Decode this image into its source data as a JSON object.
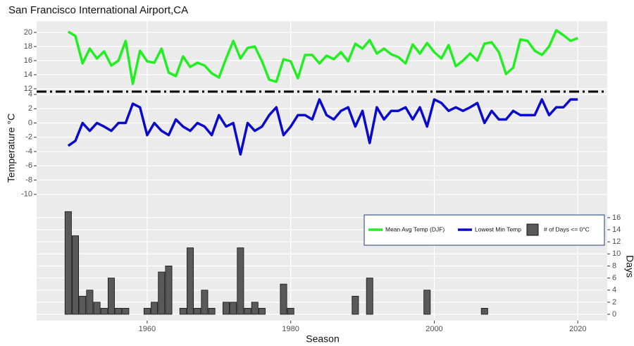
{
  "chart_data": [
    {
      "type": "line",
      "title": "San Francisco International Airport,CA",
      "x_label": "Season",
      "y_label": "Temperature °C",
      "x": [
        1949,
        1950,
        1951,
        1952,
        1953,
        1954,
        1955,
        1956,
        1957,
        1958,
        1959,
        1960,
        1961,
        1962,
        1963,
        1964,
        1965,
        1966,
        1967,
        1968,
        1969,
        1970,
        1971,
        1972,
        1973,
        1974,
        1975,
        1976,
        1977,
        1978,
        1979,
        1980,
        1981,
        1982,
        1983,
        1984,
        1985,
        1986,
        1987,
        1988,
        1989,
        1990,
        1991,
        1992,
        1993,
        1994,
        1995,
        1996,
        1997,
        1998,
        1999,
        2000,
        2001,
        2002,
        2003,
        2004,
        2005,
        2006,
        2007,
        2008,
        2009,
        2010,
        2011,
        2012,
        2013,
        2014,
        2015,
        2016,
        2017,
        2018,
        2019,
        2020
      ],
      "series": [
        {
          "name": "Mean Avg Temp (DJF)",
          "color": "#22ee22",
          "axis": "y",
          "values": [
            20.1,
            19.5,
            15.6,
            17.7,
            16.3,
            17.3,
            15.3,
            16.0,
            18.8,
            12.7,
            17.4,
            15.9,
            15.7,
            17.7,
            14.3,
            13.8,
            16.6,
            15.1,
            15.7,
            15.3,
            14.2,
            13.6,
            16.3,
            18.8,
            16.3,
            17.8,
            18.0,
            15.9,
            13.3,
            13.0,
            16.2,
            15.9,
            13.5,
            16.8,
            16.8,
            15.6,
            16.7,
            16.2,
            17.2,
            15.9,
            18.4,
            17.7,
            18.9,
            17.0,
            17.7,
            16.9,
            16.5,
            15.6,
            18.3,
            17.0,
            18.5,
            17.2,
            16.3,
            18.2,
            15.2,
            16.0,
            17.0,
            16.0,
            18.4,
            18.6,
            17.2,
            14.1,
            15.0,
            19.0,
            18.8,
            17.4,
            16.8,
            18.0,
            20.3,
            19.6,
            18.8,
            19.2
          ]
        }
      ],
      "xlim": [
        1944.6,
        2024.1
      ],
      "xticks": [
        1960,
        1980,
        2000,
        2020
      ],
      "ylim": [
        11.8,
        21.6
      ],
      "yticks": [
        12,
        14,
        16,
        18,
        20
      ],
      "grid": true
    },
    {
      "type": "line",
      "x": [
        1949,
        1950,
        1951,
        1952,
        1953,
        1954,
        1955,
        1956,
        1957,
        1958,
        1959,
        1960,
        1961,
        1962,
        1963,
        1964,
        1965,
        1966,
        1967,
        1968,
        1969,
        1970,
        1971,
        1972,
        1973,
        1974,
        1975,
        1976,
        1977,
        1978,
        1979,
        1980,
        1981,
        1982,
        1983,
        1984,
        1985,
        1986,
        1987,
        1988,
        1989,
        1990,
        1991,
        1992,
        1993,
        1994,
        1995,
        1996,
        1997,
        1998,
        1999,
        2000,
        2001,
        2002,
        2003,
        2004,
        2005,
        2006,
        2007,
        2008,
        2009,
        2010,
        2011,
        2012,
        2013,
        2014,
        2015,
        2016,
        2017,
        2018,
        2019,
        2020
      ],
      "series": [
        {
          "name": "Lowest Min Temp",
          "color": "#0a0acc",
          "axis": "y",
          "values": [
            -3.2,
            -2.5,
            0,
            -1.1,
            0,
            -0.5,
            -1.1,
            0,
            0,
            2.7,
            2.2,
            -1.7,
            0,
            -1.1,
            -1.7,
            0.5,
            -0.5,
            -1.1,
            0,
            -0.5,
            -1.7,
            1.1,
            -0.5,
            0,
            -4.4,
            0,
            -1.1,
            -0.5,
            1.1,
            2.2,
            -1.7,
            -0.5,
            1.1,
            1.1,
            0.5,
            3.3,
            1.1,
            0.5,
            1.7,
            2.2,
            -0.5,
            1.7,
            -2.8,
            2.2,
            0.5,
            1.7,
            1.7,
            2.2,
            0.5,
            2.2,
            -0.5,
            3.3,
            2.8,
            1.7,
            2.2,
            1.7,
            2.2,
            2.8,
            0,
            1.7,
            0.5,
            0.5,
            1.7,
            1.1,
            1.1,
            1.1,
            3.3,
            1.1,
            2.2,
            2.2,
            3.3,
            3.3
          ]
        }
      ],
      "ylim": [
        -11.4,
        4.2
      ],
      "yticks": [
        4,
        2,
        0,
        -2,
        -4,
        -6,
        -8,
        -10
      ],
      "grid": true
    },
    {
      "type": "bar",
      "y2_label": "Days",
      "x": [
        1949,
        1950,
        1951,
        1952,
        1953,
        1954,
        1955,
        1956,
        1957,
        1958,
        1959,
        1960,
        1961,
        1962,
        1963,
        1964,
        1965,
        1966,
        1967,
        1968,
        1969,
        1970,
        1971,
        1972,
        1973,
        1974,
        1975,
        1976,
        1977,
        1978,
        1979,
        1980,
        1981,
        1982,
        1983,
        1984,
        1985,
        1986,
        1987,
        1988,
        1989,
        1990,
        1991,
        1992,
        1993,
        1994,
        1995,
        1996,
        1997,
        1998,
        1999,
        2000,
        2001,
        2002,
        2003,
        2004,
        2005,
        2006,
        2007,
        2008,
        2009,
        2010,
        2011,
        2012,
        2013,
        2014,
        2015,
        2016,
        2017,
        2018,
        2019,
        2020
      ],
      "series": [
        {
          "name": "# of Days <= 0°C",
          "color": "#595959",
          "axis": "y2",
          "values": [
            17,
            13,
            3,
            4,
            2,
            1,
            6,
            1,
            1,
            0,
            0,
            1,
            2,
            7,
            8,
            0,
            1,
            11,
            1,
            4,
            1,
            0,
            2,
            2,
            11,
            1,
            2,
            1,
            0,
            0,
            5,
            1,
            0,
            0,
            0,
            0,
            0,
            0,
            0,
            0,
            3,
            0,
            6,
            0,
            0,
            0,
            0,
            0,
            0,
            0,
            4,
            0,
            0,
            0,
            0,
            0,
            0,
            0,
            1,
            0,
            0,
            0,
            0,
            0,
            0,
            0,
            0,
            0,
            0,
            0,
            0,
            0
          ]
        }
      ],
      "y2lim": [
        -1.05,
        18.2
      ],
      "y2ticks": [
        0,
        2,
        4,
        6,
        8,
        10,
        12,
        14,
        16
      ],
      "grid": true,
      "legend": "right"
    }
  ]
}
